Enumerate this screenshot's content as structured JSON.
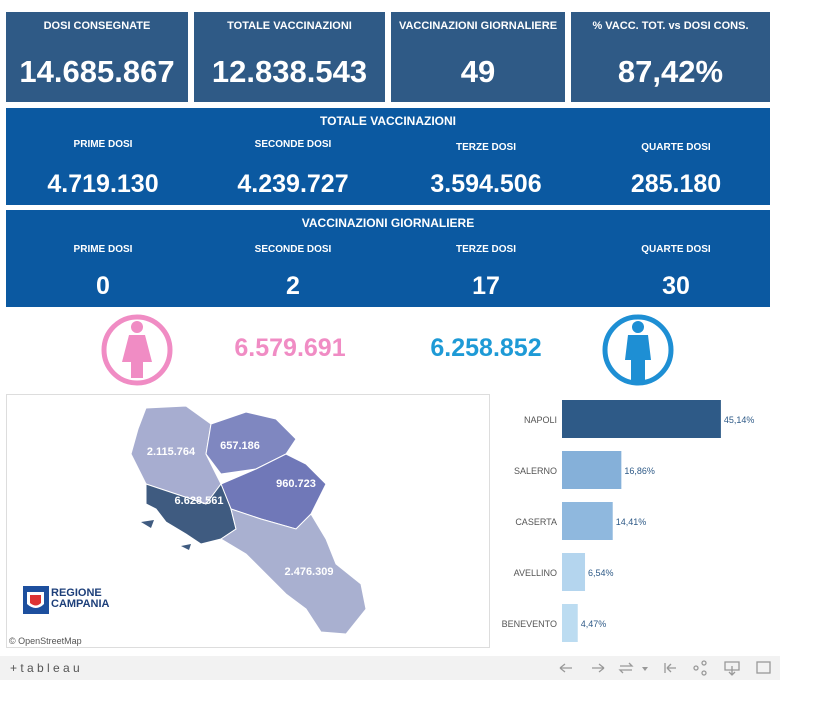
{
  "kpis": [
    {
      "title": "DOSI  CONSEGNATE",
      "value": "14.685.867"
    },
    {
      "title": "TOTALE VACCINAZIONI",
      "value": "12.838.543"
    },
    {
      "title": "VACCINAZIONI GIORNALIERE",
      "value": "49"
    },
    {
      "title": "% VACC. TOT. vs DOSI CONS.",
      "value": "87,42%"
    }
  ],
  "totale": {
    "title": "TOTALE VACCINAZIONI",
    "items": [
      {
        "label": "PRIME DOSI",
        "value": "4.719.130"
      },
      {
        "label": "SECONDE DOSI",
        "value": "4.239.727"
      },
      {
        "label": "TERZE DOSI",
        "value": "3.594.506"
      },
      {
        "label": "QUARTE DOSI",
        "value": "285.180"
      }
    ]
  },
  "giornaliere": {
    "title": "VACCINAZIONI GIORNALIERE",
    "items": [
      {
        "label": "PRIME DOSI",
        "value": "0"
      },
      {
        "label": "SECONDE DOSI",
        "value": "2"
      },
      {
        "label": "TERZE DOSI",
        "value": "17"
      },
      {
        "label": "QUARTE DOSI",
        "value": "30"
      }
    ]
  },
  "gender": {
    "female": "6.579.691",
    "male": "6.258.852"
  },
  "map": {
    "regions": [
      "2.115.764",
      "657.186",
      "960.723",
      "6.628.561",
      "2.476.309"
    ],
    "logo": [
      "REGIONE",
      "CAMPANIA"
    ],
    "attribution": "© OpenStreetMap"
  },
  "bar_chart": {
    "type": "bar",
    "orientation": "horizontal",
    "categories": [
      "NAPOLI",
      "SALERNO",
      "CASERTA",
      "AVELLINO",
      "BENEVENTO"
    ],
    "values": [
      45.14,
      16.86,
      14.41,
      6.54,
      4.47
    ],
    "value_labels": [
      "45,14%",
      "16,86%",
      "14,41%",
      "6,54%",
      "4,47%"
    ],
    "colors": [
      "#2e5a87",
      "#85b0d9",
      "#8fb8de",
      "#b4d5ee",
      "#bcdcf1"
    ],
    "xlim": [
      0,
      50
    ]
  },
  "footer": {
    "brand": "+ t a b l e a u"
  }
}
